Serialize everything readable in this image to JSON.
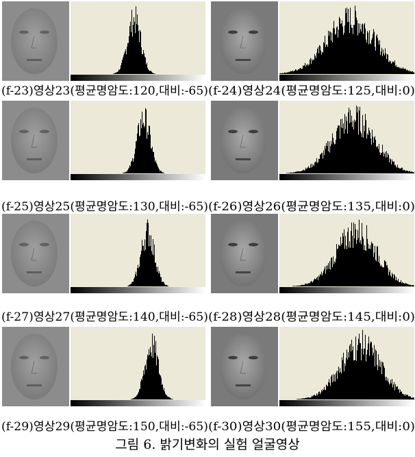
{
  "figure": {
    "panels": [
      {
        "caption": "(f-23)영상23(평균명암도:120,대비:-65)"
      },
      {
        "caption": "(f-24)영상24(평균명암도:125,대비:0)"
      },
      {
        "caption": "(f-25)영상25(평균명암도:130,대비:-65)"
      },
      {
        "caption": "(f-26)영상26(평균명암도:135,대비:0)"
      },
      {
        "caption": "(f-27)영상27(평균명암도:140,대비:-65)"
      },
      {
        "caption": "(f-28)영상28(평균명암도:145,대비:0)"
      },
      {
        "caption": "(f-29)영상29(평균명암도:150,대비:-65)"
      },
      {
        "caption": "(f-30)영상30(평균명암도:155,대비:0)"
      }
    ],
    "caption": "그림 6. 밝기변화의 실험 얼굴영상"
  }
}
